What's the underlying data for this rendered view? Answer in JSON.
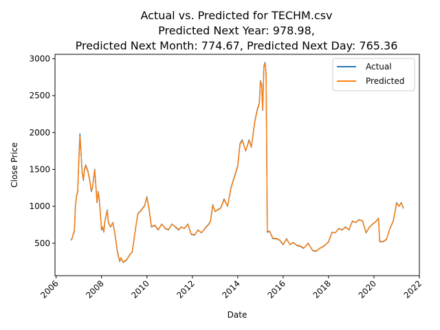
{
  "chart_data": {
    "type": "line",
    "title_lines": [
      "Actual vs. Predicted for TECHM.csv",
      "Predicted Next Year: 978.98,",
      "Predicted Next Month: 774.67, Predicted Next Day: 765.36"
    ],
    "xlabel": "Date",
    "ylabel": "Close Price",
    "xlim": [
      2005.95,
      2022.0
    ],
    "ylim": [
      60,
      3060
    ],
    "x_ticks": [
      2006,
      2008,
      2010,
      2012,
      2014,
      2016,
      2018,
      2020,
      2022
    ],
    "y_ticks": [
      500,
      1000,
      1500,
      2000,
      2500,
      3000
    ],
    "legend_position": "top-right",
    "grid": false,
    "colors": {
      "actual": "#1f77b4",
      "predicted": "#ff7f0e"
    },
    "x": [
      2006.65,
      2006.7,
      2006.75,
      2006.8,
      2006.85,
      2006.9,
      2006.95,
      2007.0,
      2007.05,
      2007.1,
      2007.15,
      2007.2,
      2007.25,
      2007.3,
      2007.4,
      2007.5,
      2007.55,
      2007.6,
      2007.7,
      2007.8,
      2007.85,
      2007.9,
      2008.0,
      2008.05,
      2008.1,
      2008.15,
      2008.25,
      2008.3,
      2008.4,
      2008.5,
      2008.6,
      2008.7,
      2008.8,
      2008.85,
      2008.95,
      2009.1,
      2009.25,
      2009.35,
      2009.5,
      2009.6,
      2009.75,
      2009.9,
      2010.0,
      2010.1,
      2010.2,
      2010.35,
      2010.5,
      2010.65,
      2010.8,
      2010.95,
      2011.1,
      2011.25,
      2011.4,
      2011.5,
      2011.65,
      2011.8,
      2011.95,
      2012.1,
      2012.25,
      2012.4,
      2012.55,
      2012.7,
      2012.8,
      2012.9,
      2013.0,
      2013.1,
      2013.25,
      2013.4,
      2013.55,
      2013.7,
      2013.85,
      2014.0,
      2014.1,
      2014.2,
      2014.35,
      2014.5,
      2014.6,
      2014.75,
      2014.85,
      2014.95,
      2015.0,
      2015.05,
      2015.1,
      2015.15,
      2015.2,
      2015.25,
      2015.3,
      2015.4,
      2015.55,
      2015.7,
      2015.85,
      2016.0,
      2016.15,
      2016.3,
      2016.45,
      2016.6,
      2016.75,
      2016.9,
      2017.1,
      2017.3,
      2017.45,
      2017.6,
      2017.8,
      2018.0,
      2018.15,
      2018.3,
      2018.45,
      2018.6,
      2018.75,
      2018.9,
      2019.05,
      2019.2,
      2019.35,
      2019.5,
      2019.65,
      2019.8,
      2019.95,
      2020.1,
      2020.2,
      2020.25,
      2020.4,
      2020.55,
      2020.7,
      2020.85,
      2021.0,
      2021.1,
      2021.2,
      2021.3
    ],
    "series": [
      {
        "name": "Actual",
        "values": [
          540,
          560,
          620,
          650,
          1000,
          1150,
          1200,
          1650,
          1980,
          1700,
          1450,
          1350,
          1500,
          1560,
          1480,
          1320,
          1200,
          1250,
          1500,
          1050,
          1200,
          1100,
          680,
          720,
          650,
          800,
          950,
          780,
          720,
          780,
          600,
          380,
          250,
          300,
          240,
          270,
          350,
          380,
          700,
          900,
          950,
          1010,
          1130,
          950,
          720,
          740,
          680,
          760,
          700,
          680,
          760,
          720,
          680,
          720,
          700,
          760,
          620,
          610,
          680,
          640,
          700,
          750,
          800,
          1020,
          930,
          950,
          980,
          1100,
          1000,
          1250,
          1400,
          1550,
          1850,
          1900,
          1750,
          1900,
          1800,
          2150,
          2300,
          2400,
          2700,
          2650,
          2300,
          2900,
          2950,
          2800,
          650,
          660,
          560,
          560,
          540,
          480,
          560,
          480,
          510,
          470,
          460,
          430,
          500,
          400,
          390,
          430,
          460,
          520,
          650,
          640,
          700,
          680,
          720,
          680,
          800,
          780,
          820,
          800,
          640,
          720,
          760,
          800,
          840,
          520,
          520,
          550,
          700,
          800,
          1050,
          1000,
          1050,
          970
        ]
      },
      {
        "name": "Predicted",
        "values": [
          545,
          565,
          625,
          660,
          990,
          1140,
          1190,
          1630,
          1950,
          1690,
          1440,
          1360,
          1490,
          1550,
          1470,
          1310,
          1210,
          1260,
          1490,
          1060,
          1190,
          1090,
          690,
          725,
          655,
          795,
          940,
          785,
          725,
          775,
          610,
          390,
          255,
          305,
          245,
          275,
          345,
          385,
          695,
          895,
          945,
          1005,
          1120,
          955,
          725,
          745,
          685,
          755,
          705,
          685,
          755,
          725,
          685,
          715,
          705,
          755,
          625,
          615,
          675,
          645,
          695,
          745,
          795,
          1010,
          935,
          945,
          975,
          1090,
          1005,
          1240,
          1390,
          1540,
          1840,
          1890,
          1755,
          1890,
          1805,
          2140,
          2290,
          2390,
          2690,
          2640,
          2310,
          2890,
          2940,
          2790,
          660,
          665,
          565,
          565,
          545,
          485,
          555,
          485,
          505,
          475,
          465,
          435,
          495,
          405,
          395,
          425,
          465,
          515,
          645,
          645,
          695,
          685,
          715,
          685,
          795,
          785,
          815,
          805,
          645,
          715,
          765,
          795,
          835,
          525,
          525,
          555,
          695,
          795,
          1040,
          1005,
          1045,
          975
        ]
      }
    ]
  }
}
